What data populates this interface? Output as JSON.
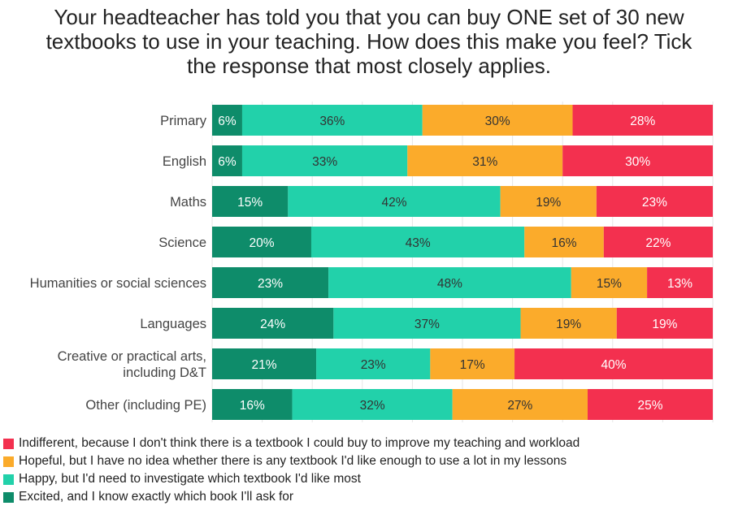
{
  "title_lines": [
    "Your headteacher has told you that you can buy ONE set of 30 new",
    "textbooks to use in your teaching. How does this make you feel? Tick",
    "the response that most closely applies."
  ],
  "colors": {
    "excited": "#0e8c6a",
    "happy": "#22d1aa",
    "hopeful": "#fbab2b",
    "indifferent": "#f3304f"
  },
  "legend": [
    {
      "label": "Indifferent, because I don't think there is a textbook I could buy to improve my teaching and workload",
      "color": "#f3304f"
    },
    {
      "label": "Hopeful, but I have no idea whether there is any textbook I'd like enough to use a lot in my lessons",
      "color": "#fbab2b"
    },
    {
      "label": "Happy, but I'd need to investigate which textbook I'd like most",
      "color": "#22d1aa"
    },
    {
      "label": "Excited, and I know exactly which book I'll ask for",
      "color": "#0e8c6a"
    }
  ],
  "chart_data": {
    "type": "bar",
    "orientation": "horizontal",
    "stacked": true,
    "categories": [
      [
        "Primary"
      ],
      [
        "English"
      ],
      [
        "Maths"
      ],
      [
        "Science"
      ],
      [
        "Humanities or social sciences"
      ],
      [
        "Languages"
      ],
      [
        "Creative or practical arts,",
        "including D&T"
      ],
      [
        "Other (including PE)"
      ]
    ],
    "series": [
      {
        "name": "Excited, and I know exactly which book I'll ask for",
        "color": "#0e8c6a",
        "values": [
          6,
          6,
          15,
          20,
          23,
          24,
          21,
          16
        ]
      },
      {
        "name": "Happy, but I'd need to investigate which textbook I'd like most",
        "color": "#22d1aa",
        "values": [
          36,
          33,
          42,
          43,
          48,
          37,
          23,
          32
        ]
      },
      {
        "name": "Hopeful, but I have no idea whether there is any textbook I'd like enough to use a lot in my lessons",
        "color": "#fbab2b",
        "values": [
          30,
          31,
          19,
          16,
          15,
          19,
          17,
          27
        ]
      },
      {
        "name": "Indifferent, because I don't think there is a textbook I could buy to improve my teaching and workload",
        "color": "#f3304f",
        "values": [
          28,
          30,
          23,
          22,
          13,
          19,
          40,
          25
        ]
      }
    ],
    "value_suffix": "%",
    "grid": true,
    "legend_position": "bottom-left"
  }
}
